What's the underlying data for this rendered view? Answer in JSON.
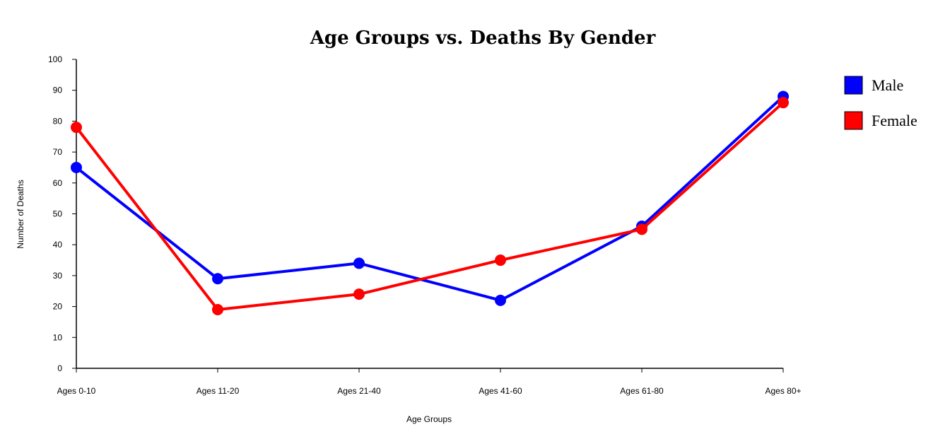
{
  "chart_data": {
    "type": "line",
    "title": "Age Groups vs. Deaths By Gender",
    "xlabel": "Age Groups",
    "ylabel": "Number of Deaths",
    "categories": [
      "Ages 0-10",
      "Ages 11-20",
      "Ages 21-40",
      "Ages 41-60",
      "Ages 61-80",
      "Ages 80+"
    ],
    "ylim": [
      0,
      100
    ],
    "yticks": [
      0,
      10,
      20,
      30,
      40,
      50,
      60,
      70,
      80,
      90,
      100
    ],
    "grid": false,
    "legend_position": "right",
    "series": [
      {
        "name": "Male",
        "color": "#0000ff",
        "values": [
          65,
          29,
          34,
          22,
          46,
          88
        ]
      },
      {
        "name": "Female",
        "color": "#ff0000",
        "values": [
          78,
          19,
          24,
          35,
          45,
          86
        ]
      }
    ]
  }
}
